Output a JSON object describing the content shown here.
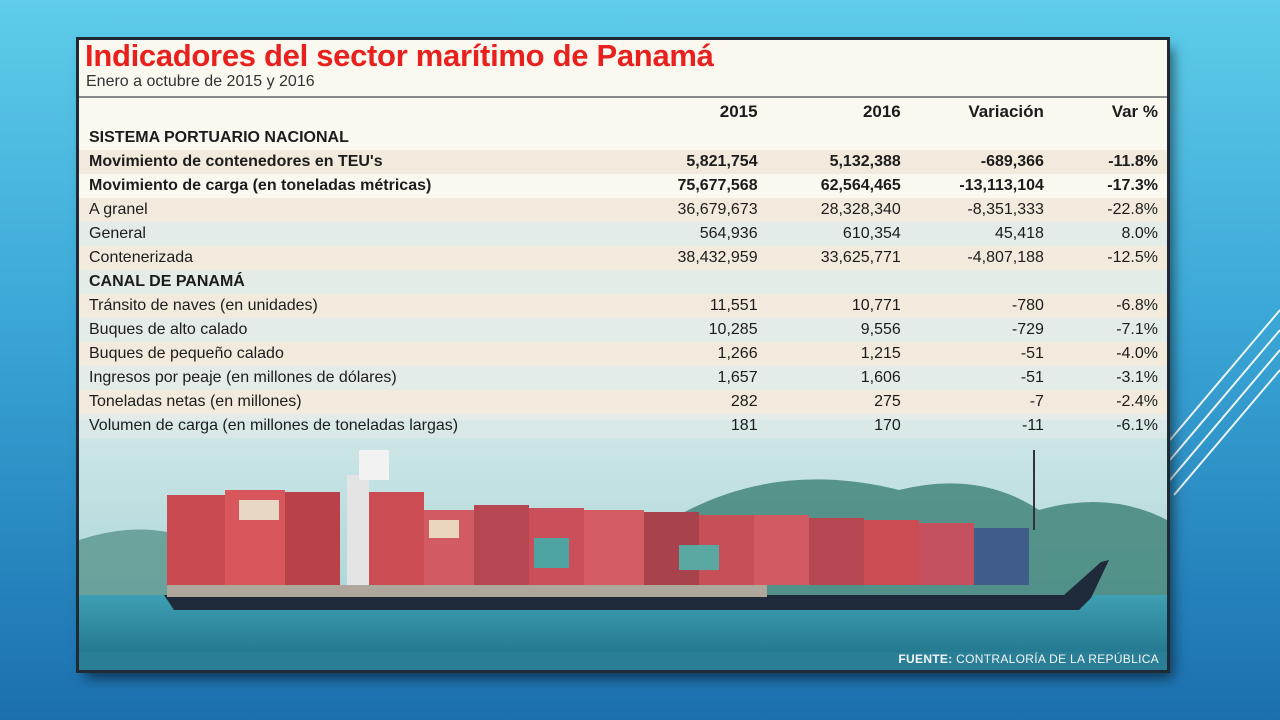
{
  "title": "Indicadores del sector marítimo de Panamá",
  "subtitle": "Enero a octubre de 2015 y 2016",
  "columns": [
    "2015",
    "2016",
    "Variación",
    "Var %"
  ],
  "sections": [
    {
      "heading": "SISTEMA PORTUARIO NACIONAL",
      "rows": [
        {
          "label": "Movimiento de contenedores en TEU's",
          "y2015": "5,821,754",
          "y2016": "5,132,388",
          "variacion": "-689,366",
          "var_pct": "-11.8%"
        },
        {
          "label": "Movimiento de carga (en toneladas métricas)",
          "y2015": "75,677,568",
          "y2016": "62,564,465",
          "variacion": "-13,113,104",
          "var_pct": "-17.3%"
        },
        {
          "label": "A granel",
          "y2015": "36,679,673",
          "y2016": "28,328,340",
          "variacion": "-8,351,333",
          "var_pct": "-22.8%"
        },
        {
          "label": "General",
          "y2015": "564,936",
          "y2016": "610,354",
          "variacion": "45,418",
          "var_pct": "8.0%"
        },
        {
          "label": "Contenerizada",
          "y2015": "38,432,959",
          "y2016": "33,625,771",
          "variacion": "-4,807,188",
          "var_pct": "-12.5%"
        }
      ]
    },
    {
      "heading": "CANAL DE PANAMÁ",
      "rows": [
        {
          "label": "Tránsito de naves (en unidades)",
          "y2015": "11,551",
          "y2016": "10,771",
          "variacion": "-780",
          "var_pct": "-6.8%"
        },
        {
          "label": "Buques de alto calado",
          "y2015": "10,285",
          "y2016": "9,556",
          "variacion": "-729",
          "var_pct": "-7.1%"
        },
        {
          "label": "Buques de pequeño calado",
          "y2015": "1,266",
          "y2016": "1,215",
          "variacion": "-51",
          "var_pct": "-4.0%"
        },
        {
          "label": "Ingresos por peaje (en millones de dólares)",
          "y2015": "1,657",
          "y2016": "1,606",
          "variacion": "-51",
          "var_pct": "-3.1%"
        },
        {
          "label": "Toneladas netas (en millones)",
          "y2015": "282",
          "y2016": "275",
          "variacion": "-7",
          "var_pct": "-2.4%"
        },
        {
          "label": "Volumen de carga (en millones de toneladas largas)",
          "y2015": "181",
          "y2016": "170",
          "variacion": "-11",
          "var_pct": "-6.1%"
        }
      ]
    }
  ],
  "source": {
    "prefix": "FUENTE:",
    "text": " CONTRALORÍA DE LA REPÚBLICA"
  },
  "colors": {
    "title": "#e8211f",
    "slide_bg_top": "#5ecdea",
    "slide_bg_bottom": "#1b6fae",
    "ship_hull": "#1f2a3a"
  }
}
